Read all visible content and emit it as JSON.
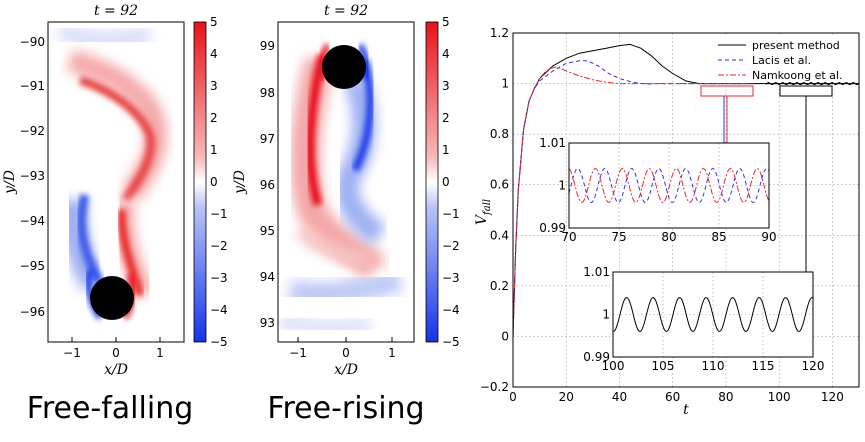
{
  "panels": [
    {
      "caption": "Free-falling",
      "title": "t = 92",
      "xlabel": "x/D",
      "ylabel": "y/D",
      "xticks": [
        "−1",
        "0",
        "1"
      ],
      "yticks": [
        "−90",
        "−91",
        "−92",
        "−93",
        "−94",
        "−95",
        "−96"
      ],
      "colorbar_ticks": [
        "5",
        "4",
        "3",
        "2",
        "1",
        "0",
        "−1",
        "−2",
        "−3",
        "−4",
        "−5"
      ]
    },
    {
      "caption": "Free-rising",
      "title": "t = 92",
      "xlabel": "x/D",
      "ylabel": "y/D",
      "xticks": [
        "−1",
        "0",
        "1"
      ],
      "yticks": [
        "99",
        "98",
        "97",
        "96",
        "95",
        "94",
        "93"
      ],
      "colorbar_ticks": [
        "5",
        "4",
        "3",
        "2",
        "1",
        "0",
        "−1",
        "−2",
        "−3",
        "−4",
        "−5"
      ]
    }
  ],
  "colors": {
    "positive": "#e8111a",
    "negative": "#1533e8",
    "present_method": "#000000",
    "lacis": "#2f2ff0",
    "namkoong": "#ee2a2a"
  },
  "chart_data": {
    "type": "line",
    "xlabel": "t",
    "ylabel": "V_fall",
    "xlim": [
      0,
      130
    ],
    "ylim": [
      -0.2,
      1.2
    ],
    "xticks": [
      "0",
      "20",
      "40",
      "60",
      "80",
      "100",
      "120"
    ],
    "yticks": [
      "1.2",
      "1",
      "0.8",
      "0.6",
      "0.4",
      "0.2",
      "0",
      "−0.2"
    ],
    "grid": true,
    "legend_position": "top-right",
    "series": [
      {
        "name": "present method",
        "style": "solid",
        "x": [
          0,
          1,
          2,
          4,
          6,
          8,
          10,
          15,
          20,
          25,
          30,
          35,
          40,
          44,
          48,
          52,
          56,
          60,
          65,
          70,
          80,
          90,
          100,
          110,
          120,
          130
        ],
        "y": [
          0,
          0.35,
          0.58,
          0.82,
          0.93,
          0.98,
          1.02,
          1.07,
          1.1,
          1.12,
          1.13,
          1.14,
          1.15,
          1.155,
          1.14,
          1.11,
          1.07,
          1.04,
          1.01,
          1.0,
          1.0,
          1.0,
          1.0,
          1.0,
          1.0,
          1.0
        ]
      },
      {
        "name": "Lacis et al.",
        "style": "dashed",
        "x": [
          0,
          1,
          2,
          4,
          6,
          8,
          10,
          15,
          20,
          25,
          28,
          32,
          36,
          40,
          45,
          50,
          55,
          60,
          70,
          80,
          90
        ],
        "y": [
          0,
          0.35,
          0.58,
          0.82,
          0.93,
          0.98,
          1.01,
          1.05,
          1.08,
          1.09,
          1.09,
          1.07,
          1.04,
          1.02,
          1.005,
          0.998,
          1.0,
          1.0,
          1.0,
          1.0,
          1.0
        ]
      },
      {
        "name": "Namkoong et al.",
        "style": "dash-dot",
        "x": [
          0,
          1,
          2,
          4,
          6,
          8,
          10,
          12,
          14,
          16,
          18,
          20,
          25,
          30,
          35,
          40,
          50,
          60,
          70,
          80,
          90
        ],
        "y": [
          0,
          0.35,
          0.58,
          0.82,
          0.93,
          0.98,
          1.02,
          1.045,
          1.06,
          1.065,
          1.06,
          1.05,
          1.03,
          1.015,
          1.005,
          1.0,
          1.0,
          1.0,
          1.0,
          1.0,
          1.0
        ]
      }
    ],
    "insets": [
      {
        "xlim": [
          70,
          90
        ],
        "ylim": [
          0.99,
          1.01
        ],
        "xticks": [
          "70",
          "75",
          "80",
          "85",
          "90"
        ],
        "yticks": [
          "1.01",
          "1",
          "0.99"
        ],
        "series": [
          "Lacis et al.",
          "Namkoong et al."
        ],
        "amplitude": 0.004,
        "period": 2.7
      },
      {
        "xlim": [
          100,
          120
        ],
        "ylim": [
          0.99,
          1.01
        ],
        "xticks": [
          "100",
          "105",
          "110",
          "115",
          "120"
        ],
        "yticks": [
          "1.01",
          "1",
          "0.99"
        ],
        "series": [
          "present method"
        ],
        "amplitude": 0.004,
        "period": 2.65
      }
    ]
  }
}
